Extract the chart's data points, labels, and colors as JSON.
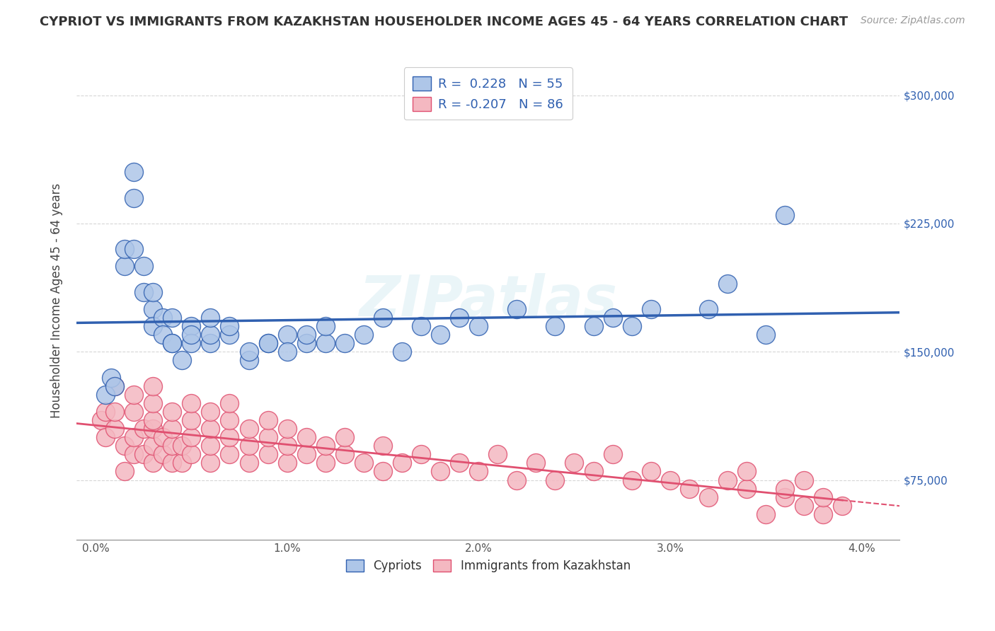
{
  "title": "CYPRIOT VS IMMIGRANTS FROM KAZAKHSTAN HOUSEHOLDER INCOME AGES 45 - 64 YEARS CORRELATION CHART",
  "source": "Source: ZipAtlas.com",
  "ylabel": "Householder Income Ages 45 - 64 years",
  "y_ticks": [
    75000,
    150000,
    225000,
    300000
  ],
  "y_tick_labels": [
    "$75,000",
    "$150,000",
    "$225,000",
    "$300,000"
  ],
  "x_ticks": [
    0.0,
    0.005,
    0.01,
    0.015,
    0.02,
    0.025,
    0.03,
    0.035,
    0.04
  ],
  "x_tick_labels": [
    "0.0%",
    "",
    "1.0%",
    "",
    "2.0%",
    "",
    "3.0%",
    "",
    "4.0%"
  ],
  "xlim": [
    -0.001,
    0.042
  ],
  "ylim": [
    40000,
    320000
  ],
  "cypriot_color": "#aec6e8",
  "kazakh_color": "#f4b8c1",
  "cypriot_line_color": "#3060b0",
  "kazakh_line_color": "#e05070",
  "R_cypriot": 0.228,
  "N_cypriot": 55,
  "R_kazakh": -0.207,
  "N_kazakh": 86,
  "legend_label_1": "Cypriots",
  "legend_label_2": "Immigrants from Kazakhstan",
  "cypriot_x": [
    0.0005,
    0.0008,
    0.001,
    0.0015,
    0.0015,
    0.002,
    0.002,
    0.002,
    0.0025,
    0.0025,
    0.003,
    0.003,
    0.003,
    0.0035,
    0.0035,
    0.004,
    0.004,
    0.004,
    0.0045,
    0.005,
    0.005,
    0.005,
    0.006,
    0.006,
    0.006,
    0.007,
    0.007,
    0.008,
    0.008,
    0.009,
    0.009,
    0.01,
    0.01,
    0.011,
    0.011,
    0.012,
    0.012,
    0.013,
    0.014,
    0.015,
    0.016,
    0.017,
    0.018,
    0.019,
    0.02,
    0.022,
    0.024,
    0.026,
    0.027,
    0.028,
    0.029,
    0.032,
    0.033,
    0.035,
    0.036
  ],
  "cypriot_y": [
    125000,
    135000,
    130000,
    200000,
    210000,
    210000,
    240000,
    255000,
    185000,
    200000,
    175000,
    185000,
    165000,
    170000,
    160000,
    155000,
    155000,
    170000,
    145000,
    165000,
    155000,
    160000,
    155000,
    160000,
    170000,
    160000,
    165000,
    145000,
    150000,
    155000,
    155000,
    160000,
    150000,
    155000,
    160000,
    155000,
    165000,
    155000,
    160000,
    170000,
    150000,
    165000,
    160000,
    170000,
    165000,
    175000,
    165000,
    165000,
    170000,
    165000,
    175000,
    175000,
    190000,
    160000,
    230000
  ],
  "kazakh_x": [
    0.0003,
    0.0005,
    0.0005,
    0.001,
    0.001,
    0.001,
    0.0015,
    0.0015,
    0.002,
    0.002,
    0.002,
    0.002,
    0.0025,
    0.0025,
    0.003,
    0.003,
    0.003,
    0.003,
    0.003,
    0.003,
    0.0035,
    0.0035,
    0.004,
    0.004,
    0.004,
    0.004,
    0.0045,
    0.0045,
    0.005,
    0.005,
    0.005,
    0.005,
    0.006,
    0.006,
    0.006,
    0.006,
    0.007,
    0.007,
    0.007,
    0.007,
    0.008,
    0.008,
    0.008,
    0.009,
    0.009,
    0.009,
    0.01,
    0.01,
    0.01,
    0.011,
    0.011,
    0.012,
    0.012,
    0.013,
    0.013,
    0.014,
    0.015,
    0.015,
    0.016,
    0.017,
    0.018,
    0.019,
    0.02,
    0.021,
    0.022,
    0.023,
    0.024,
    0.025,
    0.026,
    0.027,
    0.028,
    0.029,
    0.03,
    0.031,
    0.032,
    0.033,
    0.034,
    0.034,
    0.035,
    0.036,
    0.036,
    0.037,
    0.037,
    0.038,
    0.038,
    0.039
  ],
  "kazakh_y": [
    110000,
    100000,
    115000,
    105000,
    115000,
    130000,
    80000,
    95000,
    90000,
    100000,
    115000,
    125000,
    90000,
    105000,
    85000,
    95000,
    105000,
    110000,
    120000,
    130000,
    90000,
    100000,
    85000,
    95000,
    105000,
    115000,
    85000,
    95000,
    90000,
    100000,
    110000,
    120000,
    85000,
    95000,
    105000,
    115000,
    90000,
    100000,
    110000,
    120000,
    85000,
    95000,
    105000,
    90000,
    100000,
    110000,
    85000,
    95000,
    105000,
    90000,
    100000,
    85000,
    95000,
    90000,
    100000,
    85000,
    80000,
    95000,
    85000,
    90000,
    80000,
    85000,
    80000,
    90000,
    75000,
    85000,
    75000,
    85000,
    80000,
    90000,
    75000,
    80000,
    75000,
    70000,
    65000,
    75000,
    70000,
    80000,
    55000,
    65000,
    70000,
    75000,
    60000,
    55000,
    65000,
    60000
  ]
}
